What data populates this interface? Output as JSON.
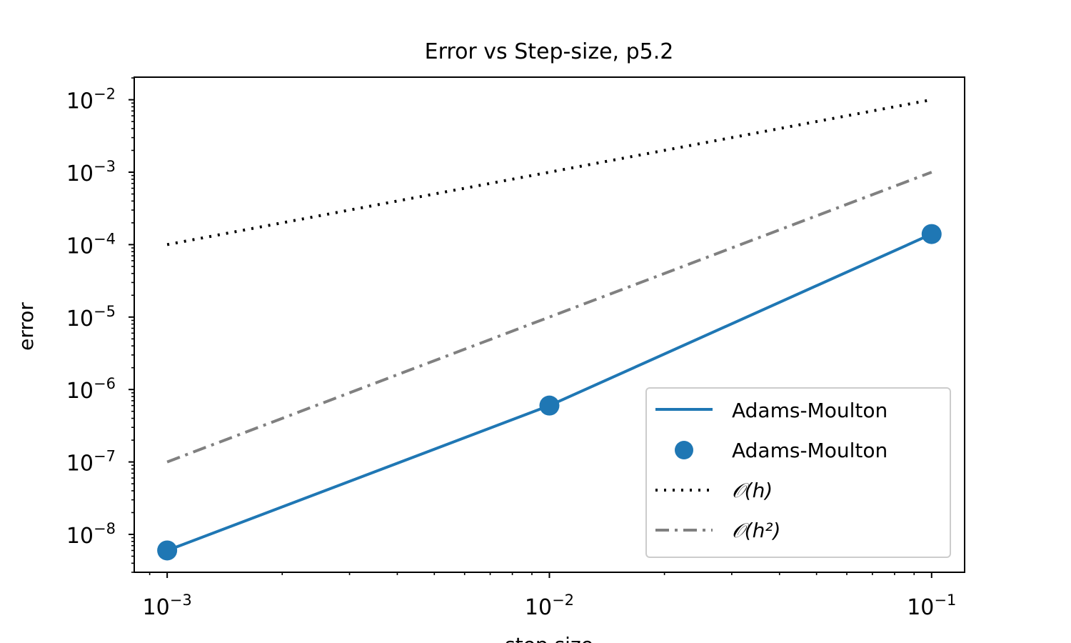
{
  "chart_data": {
    "type": "line",
    "title": "Error vs Step-size, p5.2",
    "xlabel": "step size",
    "ylabel": "error",
    "xscale": "log",
    "yscale": "log",
    "xlim": [
      0.00082,
      0.122
    ],
    "ylim": [
      3e-09,
      0.0205
    ],
    "grid": false,
    "legend_position": "lower-right",
    "x_ticks": [
      {
        "base": "10",
        "exp": "−3",
        "value": 0.001
      },
      {
        "base": "10",
        "exp": "−2",
        "value": 0.01
      },
      {
        "base": "10",
        "exp": "−1",
        "value": 0.1
      }
    ],
    "y_ticks": [
      {
        "base": "10",
        "exp": "−8",
        "value": 1e-08
      },
      {
        "base": "10",
        "exp": "−7",
        "value": 1e-07
      },
      {
        "base": "10",
        "exp": "−6",
        "value": 1e-06
      },
      {
        "base": "10",
        "exp": "−5",
        "value": 1e-05
      },
      {
        "base": "10",
        "exp": "−4",
        "value": 0.0001
      },
      {
        "base": "10",
        "exp": "−3",
        "value": 0.001
      },
      {
        "base": "10",
        "exp": "−2",
        "value": 0.01
      }
    ],
    "series": [
      {
        "name": "Adams-Moulton",
        "kind": "line",
        "color": "#1f77b4",
        "x": [
          0.001,
          0.01,
          0.1
        ],
        "y": [
          6e-09,
          6e-07,
          0.00014
        ]
      },
      {
        "name": "Adams-Moulton",
        "kind": "scatter",
        "color": "#1f77b4",
        "x": [
          0.001,
          0.01,
          0.1
        ],
        "y": [
          6e-09,
          6e-07,
          0.00014
        ]
      },
      {
        "name": "O(h)",
        "kind": "line",
        "style": "dotted",
        "color": "#000000",
        "x": [
          0.001,
          0.1
        ],
        "y": [
          0.0001,
          0.01
        ]
      },
      {
        "name": "O(h^2)",
        "kind": "line",
        "style": "dashdot",
        "color": "#808080",
        "x": [
          0.001,
          0.1
        ],
        "y": [
          1e-07,
          0.001
        ]
      }
    ],
    "legend": [
      {
        "label": "Adams-Moulton"
      },
      {
        "label": "Adams-Moulton"
      },
      {
        "label": "𝒪(h)"
      },
      {
        "label": "𝒪(h²)"
      }
    ]
  }
}
